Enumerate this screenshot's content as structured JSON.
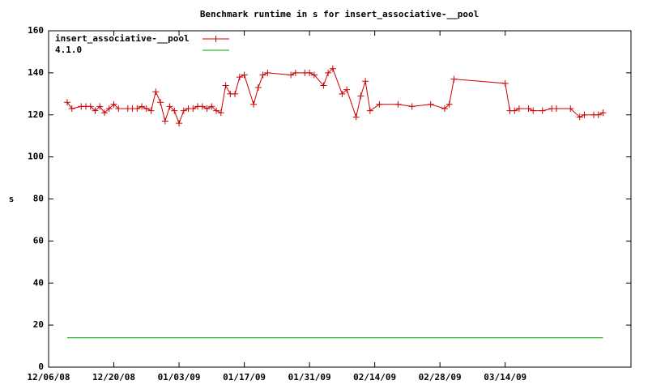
{
  "chart_data": {
    "type": "line",
    "title": "Benchmark runtime in s for insert_associative-__pool",
    "y_label": "s",
    "series": [
      {
        "name": "insert_associative-__pool",
        "color": "#cc0000",
        "marker": "+",
        "x": [
          "12/10/08",
          "12/11/08",
          "12/13/08",
          "12/14/08",
          "12/15/08",
          "12/16/08",
          "12/17/08",
          "12/18/08",
          "12/19/08",
          "12/20/08",
          "12/21/08",
          "12/23/08",
          "12/24/08",
          "12/25/08",
          "12/26/08",
          "12/27/08",
          "12/28/08",
          "12/29/08",
          "12/30/08",
          "12/31/08",
          "01/01/09",
          "01/02/09",
          "01/03/09",
          "01/04/09",
          "01/05/09",
          "01/06/09",
          "01/07/09",
          "01/08/09",
          "01/09/09",
          "01/10/09",
          "01/11/09",
          "01/12/09",
          "01/13/09",
          "01/14/09",
          "01/15/09",
          "01/16/09",
          "01/17/09",
          "01/19/09",
          "01/20/09",
          "01/21/09",
          "01/22/09",
          "01/27/09",
          "01/28/09",
          "01/30/09",
          "01/31/09",
          "02/01/09",
          "02/03/09",
          "02/04/09",
          "02/05/09",
          "02/07/09",
          "02/08/09",
          "02/10/09",
          "02/11/09",
          "02/12/09",
          "02/13/09",
          "02/15/09",
          "02/19/09",
          "02/22/09",
          "02/26/09",
          "03/01/09",
          "03/02/09",
          "03/03/09",
          "03/14/09",
          "03/15/09",
          "03/16/09",
          "03/17/09",
          "03/19/09",
          "03/20/09",
          "03/22/09",
          "03/24/09",
          "03/25/09",
          "03/28/09",
          "03/30/09",
          "03/31/09",
          "04/02/09",
          "04/03/09",
          "04/04/09"
        ],
        "values": [
          126,
          123,
          124,
          124,
          124,
          122,
          124,
          121,
          123,
          125,
          123,
          123,
          123,
          123,
          124,
          123,
          122,
          131,
          126,
          117,
          124,
          122,
          116,
          122,
          123,
          123,
          124,
          124,
          123,
          124,
          122,
          121,
          134,
          130,
          130,
          138,
          139,
          125,
          133,
          139,
          140,
          139,
          140,
          140,
          140,
          139,
          134,
          140,
          142,
          130,
          132,
          119,
          129,
          136,
          122,
          125,
          125,
          124,
          125,
          123,
          125,
          137,
          135,
          122,
          122,
          123,
          123,
          122,
          122,
          123,
          123,
          123,
          119,
          120,
          120,
          120,
          121
        ]
      },
      {
        "name": "4.1.0",
        "color": "#00aa00",
        "x": [
          "12/10/08",
          "04/04/09"
        ],
        "values": [
          14,
          14
        ]
      }
    ],
    "xlim": [
      "12/06/08",
      "04/10/09"
    ],
    "xticks": [
      "12/06/08",
      "12/20/08",
      "01/03/09",
      "01/17/09",
      "01/31/09",
      "02/14/09",
      "02/28/09",
      "03/14/09"
    ],
    "ylim": [
      0,
      160
    ],
    "yticks": [
      0,
      20,
      40,
      60,
      80,
      100,
      120,
      140,
      160
    ],
    "grid": false,
    "legend": "top-left"
  }
}
